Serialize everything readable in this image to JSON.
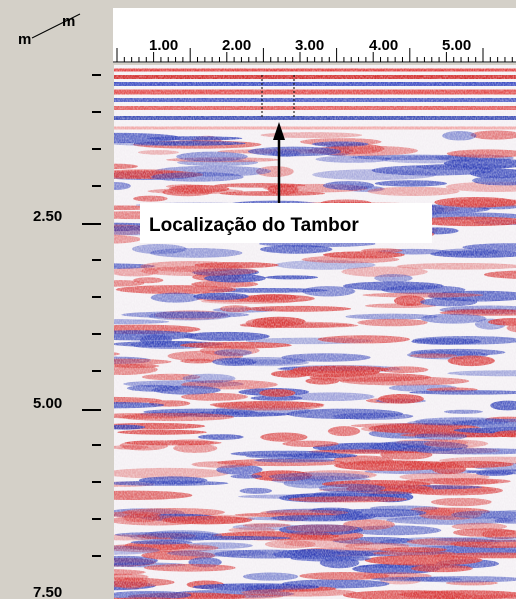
{
  "corner": {
    "x_unit": "m",
    "y_unit": "m"
  },
  "top_axis": {
    "labels": [
      "1.00",
      "2.00",
      "3.00",
      "4.00",
      "5.00"
    ]
  },
  "left_axis": {
    "labels": [
      "2.50",
      "5.00",
      "7.50"
    ]
  },
  "annotation": {
    "text": "Localização do Tambor"
  }
}
